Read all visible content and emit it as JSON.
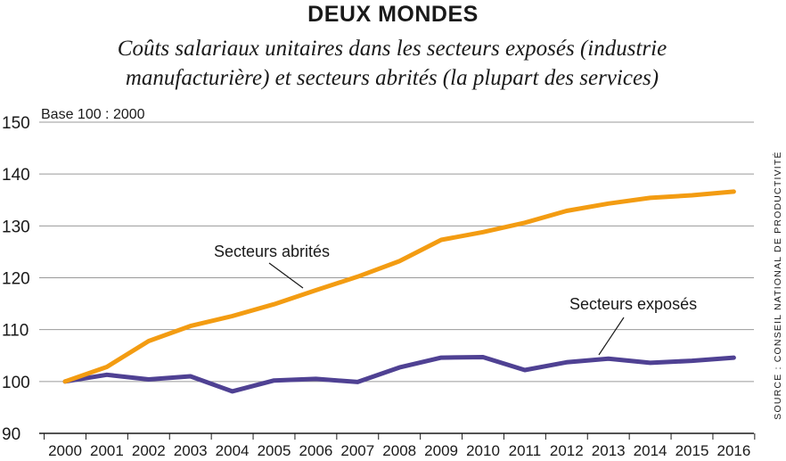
{
  "chart_data": {
    "type": "line",
    "title": "DEUX MONDES",
    "subtitle": "Coûts salariaux unitaires dans les secteurs exposés (industrie manufacturière) et secteurs abrités (la plupart des services)",
    "unit_label": "Base 100 : 2000",
    "source": "SOURCE : CONSEIL NATIONAL DE PRODUCTIVITÉ",
    "x": [
      "2000",
      "2001",
      "2002",
      "2003",
      "2004",
      "2005",
      "2006",
      "2007",
      "2008",
      "2009",
      "2010",
      "2011",
      "2012",
      "2013",
      "2014",
      "2015",
      "2016"
    ],
    "ylim": [
      90,
      150
    ],
    "yticks": [
      90,
      100,
      110,
      120,
      130,
      140,
      150
    ],
    "grid": true,
    "series": [
      {
        "name": "Secteurs abrités",
        "color": "#f39c12",
        "values": [
          100,
          102.8,
          107.8,
          110.7,
          112.6,
          114.9,
          117.6,
          120.2,
          123.2,
          127.3,
          128.8,
          130.6,
          132.9,
          134.3,
          135.4,
          135.9,
          136.6
        ]
      },
      {
        "name": "Secteurs exposés",
        "color": "#4f4193",
        "values": [
          100,
          101.3,
          100.4,
          101,
          98.1,
          100.2,
          100.5,
          99.9,
          102.7,
          104.6,
          104.7,
          102.2,
          103.7,
          104.4,
          103.6,
          104,
          104.6
        ]
      }
    ]
  }
}
